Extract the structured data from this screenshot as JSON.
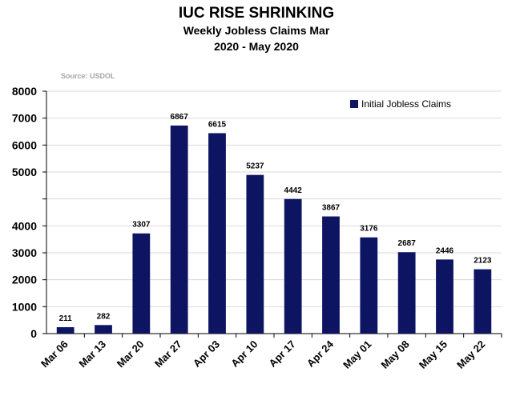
{
  "chart_data": {
    "type": "bar",
    "title": "IUC RISE SHRINKING",
    "subtitle_line1": "Weekly Jobless Claims Mar",
    "subtitle_line2": "2020 - May 2020",
    "source": "Source: USDOL",
    "categories": [
      "Mar 06",
      "Mar 13",
      "Mar 20",
      "Mar 27",
      "Apr 03",
      "Apr 10",
      "Apr 17",
      "Apr 24",
      "May 01",
      "May 08",
      "May 15",
      "May 22"
    ],
    "series": [
      {
        "name": "Initial Jobless Claims",
        "values": [
          211,
          282,
          3307,
          6867,
          6615,
          5237,
          4442,
          3867,
          3176,
          2687,
          2446,
          2123
        ],
        "labels": [
          "211",
          "282",
          "3307",
          "6867",
          "6615",
          "5237",
          "4442",
          "3867",
          "3176",
          "2687",
          "2446",
          "2123"
        ]
      }
    ],
    "yticks": [
      "0",
      "1000",
      "2000",
      "3000",
      "4000",
      "",
      "5000",
      "6000",
      "7000",
      "8000"
    ],
    "ylim": [
      0,
      8000
    ],
    "grid": true,
    "legend_position": "top-right",
    "bar_color": "#0d1461"
  }
}
